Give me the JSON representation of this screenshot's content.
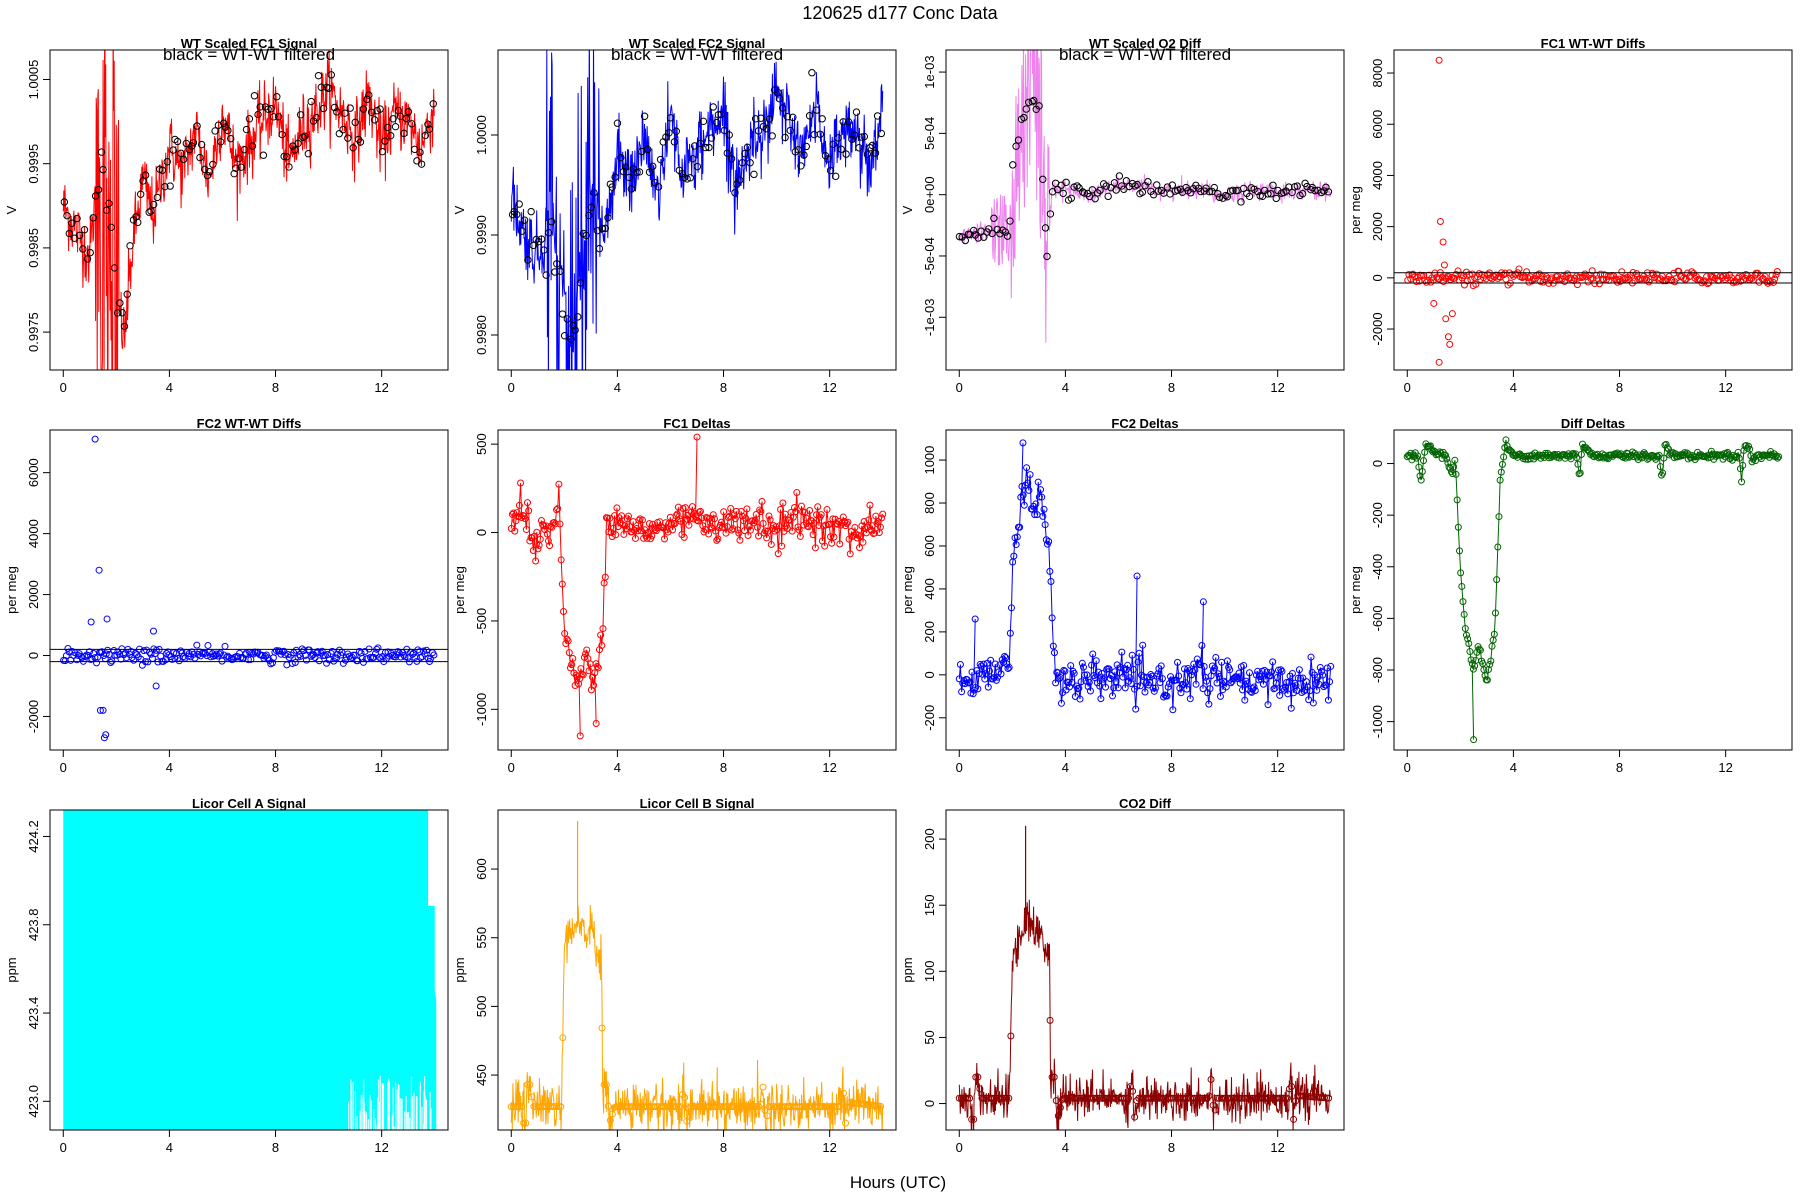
{
  "figure": {
    "title": "120625   d177   Conc Data",
    "xlabel": "Hours (UTC)",
    "annotation": "black = WT-WT filtered"
  },
  "chart_data": [
    {
      "id": "p1",
      "type": "line",
      "title": "WT Scaled FC1 Signal",
      "ylabel": "V",
      "color": "#ff0000",
      "xlim": [
        -0.5,
        14.5
      ],
      "ylim": [
        0.99705,
        1.00085
      ],
      "xticks": [
        0,
        4,
        8,
        12
      ],
      "yticks": [
        0.9975,
        0.9985,
        0.9995,
        1.0005
      ],
      "ytick_labels": [
        "0.9975",
        "0.9985",
        "0.9995",
        "1.0005"
      ],
      "annotation": "black = WT-WT filtered",
      "overlay_points_color": "#000000",
      "trace": [
        [
          0,
          0.999
        ],
        [
          0.5,
          0.9987
        ],
        [
          1.0,
          0.9984
        ],
        [
          1.2,
          0.9991
        ],
        [
          1.5,
          0.9995
        ],
        [
          1.8,
          0.9988
        ],
        [
          2.0,
          0.998
        ],
        [
          2.3,
          0.9974
        ],
        [
          2.6,
          0.9985
        ],
        [
          3.0,
          0.9993
        ],
        [
          3.4,
          0.9989
        ],
        [
          4.0,
          0.9997
        ],
        [
          4.5,
          0.9994
        ],
        [
          5.0,
          0.9999
        ],
        [
          5.5,
          0.9993
        ],
        [
          6.0,
          1.0001
        ],
        [
          6.5,
          0.9995
        ],
        [
          7.0,
          0.9997
        ],
        [
          7.5,
          1.0
        ],
        [
          8.0,
          1.0002
        ],
        [
          8.5,
          0.9995
        ],
        [
          9.0,
          0.9999
        ],
        [
          9.5,
          1.0001
        ],
        [
          10.0,
          1.0004
        ],
        [
          10.5,
          1.0001
        ],
        [
          11.0,
          0.9998
        ],
        [
          11.5,
          1.0003
        ],
        [
          12.0,
          0.9997
        ],
        [
          12.5,
          1.0001
        ],
        [
          13.0,
          1.0
        ],
        [
          13.5,
          0.9997
        ],
        [
          14.0,
          1.0002
        ]
      ],
      "noise": 0.00045
    },
    {
      "id": "p2",
      "type": "line",
      "title": "WT Scaled FC2 Signal",
      "ylabel": "V",
      "color": "#0000ff",
      "xlim": [
        -0.5,
        14.5
      ],
      "ylim": [
        0.99765,
        1.00085
      ],
      "xticks": [
        0,
        4,
        8,
        12
      ],
      "yticks": [
        0.998,
        0.999,
        1.0
      ],
      "ytick_labels": [
        "0.9980",
        "0.9990",
        "1.0000"
      ],
      "annotation": "black = WT-WT filtered",
      "overlay_points_color": "#000000",
      "trace": [
        [
          0,
          0.9994
        ],
        [
          0.5,
          0.999
        ],
        [
          1.0,
          0.9988
        ],
        [
          1.5,
          0.9992
        ],
        [
          2.0,
          0.9983
        ],
        [
          2.3,
          0.9979
        ],
        [
          2.7,
          0.9988
        ],
        [
          3.0,
          0.9993
        ],
        [
          3.5,
          0.999
        ],
        [
          4.0,
          0.9998
        ],
        [
          4.5,
          0.9995
        ],
        [
          5.0,
          1.0
        ],
        [
          5.5,
          0.9994
        ],
        [
          6.0,
          1.0002
        ],
        [
          6.5,
          0.9996
        ],
        [
          7.0,
          0.9998
        ],
        [
          7.5,
          1.0001
        ],
        [
          8.0,
          1.0002
        ],
        [
          8.5,
          0.9995
        ],
        [
          9.0,
          0.9999
        ],
        [
          9.5,
          1.0001
        ],
        [
          10.0,
          1.0004
        ],
        [
          10.5,
          1.0001
        ],
        [
          11.0,
          0.9998
        ],
        [
          11.5,
          1.0003
        ],
        [
          12.0,
          0.9997
        ],
        [
          12.5,
          1.0001
        ],
        [
          13.0,
          1.0
        ],
        [
          13.5,
          0.9997
        ],
        [
          14.0,
          1.0003
        ]
      ],
      "noise": 0.0004
    },
    {
      "id": "p3",
      "type": "line",
      "title": "WT Scaled O2 Diff",
      "ylabel": "V",
      "color": "#ee82ee",
      "xlim": [
        -0.5,
        14.5
      ],
      "ylim": [
        -0.00143,
        0.00118
      ],
      "xticks": [
        0,
        4,
        8,
        12
      ],
      "yticks": [
        -0.001,
        -0.0005,
        0,
        0.0005,
        0.001
      ],
      "ytick_labels": [
        "-1e-03",
        "-5e-04",
        "0e+00",
        "5e-04",
        "1e-03"
      ],
      "annotation": "black = WT-WT filtered",
      "overlay_points_color": "#000000",
      "trace": [
        [
          0,
          -0.00035
        ],
        [
          0.5,
          -0.00032
        ],
        [
          1.0,
          -0.0003
        ],
        [
          1.5,
          -0.00028
        ],
        [
          1.9,
          -0.0003
        ],
        [
          2.0,
          0.0002
        ],
        [
          2.3,
          0.0006
        ],
        [
          2.7,
          0.0008
        ],
        [
          3.0,
          0.0007
        ],
        [
          3.3,
          -0.0005
        ],
        [
          3.5,
          5e-05
        ],
        [
          4.0,
          5e-05
        ],
        [
          5.0,
          0.0
        ],
        [
          6.0,
          8e-05
        ],
        [
          7.0,
          5e-05
        ],
        [
          8.0,
          3e-05
        ],
        [
          9.0,
          5e-05
        ],
        [
          10.0,
          0.0
        ],
        [
          11.0,
          4e-05
        ],
        [
          12.0,
          2e-05
        ],
        [
          13.0,
          4e-05
        ],
        [
          14.0,
          3e-05
        ]
      ],
      "noise": 8e-05
    },
    {
      "id": "p4",
      "type": "scatter",
      "title": "FC1 WT-WT Diffs",
      "ylabel": "per meg",
      "color": "#ff0000",
      "xlim": [
        -0.5,
        14.5
      ],
      "ylim": [
        -3600,
        8900
      ],
      "xticks": [
        0,
        4,
        8,
        12
      ],
      "yticks": [
        -2000,
        0,
        2000,
        4000,
        6000,
        8000
      ],
      "ytick_labels": [
        "-2000",
        "0",
        "2000",
        "4000",
        "6000",
        "8000"
      ],
      "hlines": [
        -200,
        200
      ],
      "outliers": [
        [
          1.2,
          8500
        ],
        [
          1.25,
          2200
        ],
        [
          1.35,
          1400
        ],
        [
          1.4,
          500
        ],
        [
          1.45,
          -1600
        ],
        [
          1.55,
          -2300
        ],
        [
          1.6,
          -2600
        ],
        [
          1.2,
          -3300
        ],
        [
          1.7,
          -1400
        ],
        [
          1.0,
          -1000
        ]
      ],
      "base": 0,
      "spread": 150
    },
    {
      "id": "p5",
      "type": "scatter",
      "title": "FC2 WT-WT Diffs",
      "ylabel": "per meg",
      "color": "#0000ff",
      "xlim": [
        -0.5,
        14.5
      ],
      "ylim": [
        -3100,
        7400
      ],
      "xticks": [
        0,
        4,
        8,
        12
      ],
      "yticks": [
        -2000,
        0,
        2000,
        4000,
        6000
      ],
      "ytick_labels": [
        "-2000",
        "0",
        "2000",
        "4000",
        "6000"
      ],
      "hlines": [
        -200,
        200
      ],
      "outliers": [
        [
          1.2,
          7100
        ],
        [
          1.35,
          2800
        ],
        [
          1.65,
          1200
        ],
        [
          1.05,
          1100
        ],
        [
          1.4,
          -1800
        ],
        [
          1.5,
          -1800
        ],
        [
          1.55,
          -2700
        ],
        [
          1.6,
          -2600
        ],
        [
          3.4,
          800
        ],
        [
          3.5,
          -1000
        ]
      ],
      "base": 0,
      "spread": 150
    },
    {
      "id": "p6",
      "type": "line-points",
      "title": "FC1 Deltas",
      "ylabel": "per meg",
      "color": "#ff0000",
      "xlim": [
        -0.5,
        14.5
      ],
      "ylim": [
        -1230,
        580
      ],
      "xticks": [
        0,
        4,
        8,
        12
      ],
      "yticks": [
        -1000,
        -500,
        0,
        500
      ],
      "ytick_labels": [
        "-1000",
        "-500",
        "0",
        "500"
      ],
      "trace": [
        [
          0,
          50
        ],
        [
          0.3,
          150
        ],
        [
          0.6,
          100
        ],
        [
          0.9,
          -100
        ],
        [
          1.2,
          50
        ],
        [
          1.5,
          0
        ],
        [
          1.8,
          180
        ],
        [
          2.0,
          -500
        ],
        [
          2.2,
          -700
        ],
        [
          2.5,
          -850
        ],
        [
          2.8,
          -700
        ],
        [
          3.1,
          -850
        ],
        [
          3.4,
          -700
        ],
        [
          3.6,
          50
        ],
        [
          4.0,
          50
        ],
        [
          5.0,
          0
        ],
        [
          6.0,
          50
        ],
        [
          7.0,
          100
        ],
        [
          8.0,
          30
        ],
        [
          9.0,
          60
        ],
        [
          10.0,
          20
        ],
        [
          11.0,
          80
        ],
        [
          12.0,
          30
        ],
        [
          13.0,
          0
        ],
        [
          14.0,
          60
        ]
      ],
      "spikes": [
        [
          7.0,
          540
        ],
        [
          2.6,
          -1150
        ],
        [
          3.2,
          -1080
        ]
      ],
      "noise": 90
    },
    {
      "id": "p7",
      "type": "line-points",
      "title": "FC2 Deltas",
      "ylabel": "per meg",
      "color": "#0000ff",
      "xlim": [
        -0.5,
        14.5
      ],
      "ylim": [
        -350,
        1140
      ],
      "xticks": [
        0,
        4,
        8,
        12
      ],
      "yticks": [
        -200,
        0,
        200,
        400,
        600,
        800,
        1000
      ],
      "ytick_labels": [
        "-200",
        "0",
        "200",
        "400",
        "600",
        "800",
        "1000"
      ],
      "trace": [
        [
          0,
          0
        ],
        [
          0.5,
          -50
        ],
        [
          1.0,
          0
        ],
        [
          1.5,
          50
        ],
        [
          1.9,
          100
        ],
        [
          2.0,
          500
        ],
        [
          2.2,
          700
        ],
        [
          2.5,
          900
        ],
        [
          2.8,
          750
        ],
        [
          3.1,
          850
        ],
        [
          3.4,
          600
        ],
        [
          3.6,
          0
        ],
        [
          4.0,
          -50
        ],
        [
          5.0,
          -30
        ],
        [
          6.0,
          0
        ],
        [
          7.0,
          -50
        ],
        [
          8.0,
          -30
        ],
        [
          9.0,
          0
        ],
        [
          10.0,
          -20
        ],
        [
          11.0,
          -50
        ],
        [
          12.0,
          -30
        ],
        [
          13.0,
          -40
        ],
        [
          14.0,
          -30
        ]
      ],
      "spikes": [
        [
          2.4,
          1080
        ],
        [
          0.6,
          260
        ],
        [
          6.7,
          460
        ],
        [
          9.2,
          340
        ]
      ],
      "noise": 80
    },
    {
      "id": "p8",
      "type": "line-points",
      "title": "Diff Deltas",
      "ylabel": "per meg",
      "color": "#006400",
      "xlim": [
        -0.5,
        14.5
      ],
      "ylim": [
        -1110,
        130
      ],
      "xticks": [
        0,
        4,
        8,
        12
      ],
      "yticks": [
        -1000,
        -800,
        -600,
        -400,
        -200,
        0
      ],
      "ytick_labels": [
        "-1000",
        "-800",
        "-600",
        "-400",
        "-200",
        "0"
      ],
      "trace": [
        [
          0,
          30
        ],
        [
          0.4,
          30
        ],
        [
          0.5,
          -70
        ],
        [
          0.7,
          80
        ],
        [
          1.0,
          40
        ],
        [
          1.4,
          40
        ],
        [
          1.7,
          -30
        ],
        [
          1.8,
          30
        ],
        [
          2.0,
          -400
        ],
        [
          2.2,
          -650
        ],
        [
          2.5,
          -800
        ],
        [
          2.7,
          -700
        ],
        [
          3.0,
          -850
        ],
        [
          3.3,
          -650
        ],
        [
          3.5,
          -70
        ],
        [
          3.7,
          80
        ],
        [
          4.0,
          30
        ],
        [
          6.4,
          30
        ],
        [
          6.5,
          -70
        ],
        [
          6.6,
          80
        ],
        [
          7.0,
          30
        ],
        [
          9.5,
          30
        ],
        [
          9.6,
          -70
        ],
        [
          9.7,
          80
        ],
        [
          10.0,
          30
        ],
        [
          12.5,
          30
        ],
        [
          12.6,
          -70
        ],
        [
          12.7,
          80
        ],
        [
          13.0,
          30
        ],
        [
          14.0,
          30
        ]
      ],
      "spikes": [
        [
          2.5,
          -1070
        ]
      ],
      "noise": 12
    },
    {
      "id": "p9",
      "type": "line",
      "title": "Licor Cell A Signal",
      "ylabel": "ppm",
      "color": "#00ffff",
      "xlim": [
        -0.5,
        14.5
      ],
      "ylim": [
        422.87,
        424.32
      ],
      "xticks": [
        0,
        4,
        8,
        12
      ],
      "yticks": [
        423.0,
        423.4,
        423.8,
        424.2
      ],
      "ytick_labels": [
        "423.0",
        "423.4",
        "423.8",
        "424.2"
      ],
      "fill_band": [
        0,
        14
      ]
    },
    {
      "id": "p10",
      "type": "line",
      "title": "Licor Cell B Signal",
      "ylabel": "ppm",
      "color": "#ffa500",
      "xlim": [
        -0.5,
        14.5
      ],
      "ylim": [
        410,
        643
      ],
      "xticks": [
        0,
        4,
        8,
        12
      ],
      "yticks": [
        450,
        500,
        550,
        600
      ],
      "ytick_labels": [
        "450",
        "500",
        "550",
        "600"
      ],
      "trace": [
        [
          0,
          427
        ],
        [
          0.4,
          427
        ],
        [
          0.45,
          415
        ],
        [
          0.55,
          415
        ],
        [
          0.6,
          443
        ],
        [
          0.75,
          443
        ],
        [
          0.8,
          427
        ],
        [
          1.9,
          427
        ],
        [
          2.0,
          540
        ],
        [
          2.5,
          560
        ],
        [
          3.0,
          555
        ],
        [
          3.4,
          530
        ],
        [
          3.45,
          427
        ],
        [
          3.5,
          443
        ],
        [
          3.6,
          443
        ],
        [
          3.7,
          415
        ],
        [
          3.9,
          427
        ],
        [
          6.4,
          427
        ],
        [
          6.5,
          443
        ],
        [
          6.6,
          415
        ],
        [
          6.7,
          427
        ],
        [
          9.4,
          427
        ],
        [
          9.5,
          443
        ],
        [
          9.6,
          415
        ],
        [
          9.7,
          427
        ],
        [
          12.4,
          427
        ],
        [
          12.5,
          443
        ],
        [
          12.6,
          415
        ],
        [
          12.7,
          430
        ],
        [
          14.0,
          427
        ]
      ],
      "spikes": [
        [
          2.5,
          635
        ]
      ],
      "noise": 20
    },
    {
      "id": "p11",
      "type": "line",
      "title": "CO2 Diff",
      "ylabel": "ppm",
      "color": "#8b0000",
      "xlim": [
        -0.5,
        14.5
      ],
      "ylim": [
        -20,
        222
      ],
      "xticks": [
        0,
        4,
        8,
        12
      ],
      "yticks": [
        0,
        50,
        100,
        150,
        200
      ],
      "ytick_labels": [
        "0",
        "50",
        "100",
        "150",
        "200"
      ],
      "trace": [
        [
          0,
          4
        ],
        [
          0.4,
          4
        ],
        [
          0.45,
          -12
        ],
        [
          0.55,
          -12
        ],
        [
          0.6,
          20
        ],
        [
          0.75,
          20
        ],
        [
          0.8,
          4
        ],
        [
          1.9,
          4
        ],
        [
          2.0,
          110
        ],
        [
          2.5,
          140
        ],
        [
          3.0,
          130
        ],
        [
          3.4,
          110
        ],
        [
          3.45,
          4
        ],
        [
          3.5,
          20
        ],
        [
          3.6,
          20
        ],
        [
          3.7,
          -12
        ],
        [
          3.9,
          4
        ],
        [
          6.4,
          4
        ],
        [
          6.5,
          20
        ],
        [
          6.6,
          -12
        ],
        [
          6.7,
          4
        ],
        [
          9.4,
          4
        ],
        [
          9.5,
          20
        ],
        [
          9.6,
          -12
        ],
        [
          9.7,
          4
        ],
        [
          12.4,
          4
        ],
        [
          12.5,
          20
        ],
        [
          12.6,
          -12
        ],
        [
          12.7,
          6
        ],
        [
          14.0,
          4
        ]
      ],
      "spikes": [
        [
          2.5,
          210
        ]
      ],
      "noise": 18
    }
  ]
}
